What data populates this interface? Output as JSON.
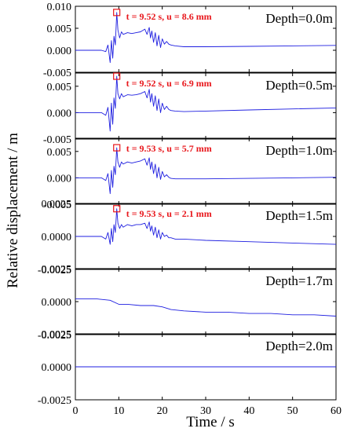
{
  "chart_data": {
    "type": "line",
    "xlabel": "Time / s",
    "ylabel": "Relative displacement / m",
    "xlim": [
      0,
      60
    ],
    "x_ticks": [
      "0",
      "10",
      "20",
      "30",
      "40",
      "50",
      "60"
    ],
    "colors": {
      "series": "#1f1fe0",
      "annotation": "#e8161b"
    },
    "panels": [
      {
        "label": "Depth=0.0m",
        "ylim": [
          -0.005,
          0.01
        ],
        "y_ticks": [
          0.01,
          0.005,
          0.0,
          -0.005
        ],
        "y_tick_labels": [
          "0.010",
          "0.005",
          "0.000",
          "-0.005"
        ],
        "annotation": {
          "text": "t = 9.52 s, u = 8.6 mm",
          "t": 9.52,
          "u": 0.0086
        },
        "series": {
          "x": [
            0,
            4,
            6,
            7,
            7.5,
            8,
            8.3,
            8.6,
            8.9,
            9.2,
            9.52,
            9.8,
            10.2,
            10.6,
            11,
            12,
            13,
            14,
            15,
            16,
            16.5,
            17,
            17.3,
            17.6,
            18,
            18.4,
            18.8,
            19.2,
            19.6,
            20,
            20.5,
            21,
            21.5,
            22,
            23,
            25,
            30,
            40,
            50,
            60
          ],
          "y": [
            0.0,
            0.0,
            0.0,
            -0.0003,
            0.0012,
            -0.0028,
            0.0022,
            -0.0018,
            0.0032,
            0.0012,
            0.0086,
            0.0046,
            0.0028,
            0.0042,
            0.0036,
            0.004,
            0.0038,
            0.004,
            0.0042,
            0.0048,
            0.0036,
            0.0052,
            0.0028,
            0.0044,
            0.0018,
            0.004,
            0.001,
            0.0034,
            0.0006,
            0.0026,
            0.0014,
            0.002,
            0.0014,
            0.0012,
            0.001,
            0.0008,
            0.0008,
            0.0009,
            0.001,
            0.0011
          ]
        }
      },
      {
        "label": "Depth=0.5m",
        "ylim": [
          -0.005,
          0.0075
        ],
        "y_ticks": [
          0.005,
          0.0,
          -0.005
        ],
        "y_tick_labels": [
          "0.005",
          "0.000",
          "-0.005"
        ],
        "annotation": {
          "text": "t = 9.52 s, u = 6.9 mm",
          "t": 9.52,
          "u": 0.0069
        },
        "series": {
          "x": [
            0,
            4,
            6,
            7,
            7.5,
            8,
            8.3,
            8.6,
            8.9,
            9.2,
            9.52,
            9.8,
            10.2,
            10.6,
            11,
            12,
            13,
            14,
            15,
            16,
            16.5,
            17,
            17.3,
            17.6,
            18,
            18.4,
            18.8,
            19.2,
            19.6,
            20,
            20.5,
            21,
            21.5,
            22,
            23,
            25,
            30,
            40,
            50,
            60
          ],
          "y": [
            0.0,
            0.0,
            0.0,
            -0.0005,
            0.001,
            -0.0035,
            0.0018,
            -0.0022,
            0.0028,
            0.0008,
            0.0069,
            0.0036,
            0.0026,
            0.0036,
            0.003,
            0.0034,
            0.0033,
            0.0034,
            0.0036,
            0.004,
            0.0028,
            0.0044,
            0.002,
            0.0036,
            0.0012,
            0.0032,
            0.0004,
            0.0026,
            0.0,
            0.0018,
            0.0006,
            0.0012,
            0.0006,
            0.0004,
            0.0003,
            0.0002,
            0.0003,
            0.0005,
            0.0007,
            0.0009
          ]
        }
      },
      {
        "label": "Depth=1.0m",
        "ylim": [
          -0.005,
          0.0075
        ],
        "y_ticks": [
          0.005,
          0.0,
          -0.005
        ],
        "y_tick_labels": [
          "0.005",
          "0.000",
          "-0.005"
        ],
        "annotation": {
          "text": "t = 9.53 s, u = 5.7 mm",
          "t": 9.53,
          "u": 0.0057
        },
        "series": {
          "x": [
            0,
            4,
            6,
            7,
            7.5,
            8,
            8.3,
            8.6,
            8.9,
            9.2,
            9.53,
            9.8,
            10.2,
            10.6,
            11,
            12,
            13,
            14,
            15,
            16,
            16.5,
            17,
            17.3,
            17.6,
            18,
            18.4,
            18.8,
            19.2,
            19.6,
            20,
            20.5,
            21,
            21.5,
            22,
            23,
            25,
            30,
            40,
            50,
            60
          ],
          "y": [
            0.0,
            0.0,
            0.0,
            -0.0005,
            0.0008,
            -0.003,
            0.0014,
            -0.0018,
            0.0022,
            0.0006,
            0.0057,
            0.003,
            0.002,
            0.003,
            0.0026,
            0.003,
            0.0028,
            0.003,
            0.0032,
            0.0036,
            0.0024,
            0.0038,
            0.0016,
            0.003,
            0.0008,
            0.0026,
            0.0,
            0.002,
            -0.0003,
            0.0012,
            0.0002,
            0.0006,
            0.0001,
            -0.0001,
            -0.0002,
            -0.0002,
            -0.0002,
            -0.0001,
            0.0,
            0.0001
          ]
        }
      },
      {
        "label": "Depth=1.5m",
        "ylim": [
          -0.0025,
          0.0025
        ],
        "y_ticks": [
          0.0025,
          0.0,
          -0.0025
        ],
        "y_tick_labels": [
          "0.0025",
          "0.0000",
          "-0.0025"
        ],
        "annotation": {
          "text": "t = 9.53 s, u = 2.1 mm",
          "t": 9.53,
          "u": 0.0021
        },
        "series": {
          "x": [
            0,
            4,
            6,
            7,
            7.5,
            8,
            8.3,
            8.6,
            8.9,
            9.2,
            9.53,
            9.8,
            10.2,
            10.6,
            11,
            12,
            13,
            14,
            15,
            16,
            16.5,
            17,
            17.3,
            17.6,
            18,
            18.4,
            18.8,
            19.2,
            19.6,
            20,
            20.5,
            21,
            21.5,
            22,
            23,
            25,
            30,
            40,
            50,
            60
          ],
          "y": [
            0.0,
            0.0,
            0.0,
            -0.0002,
            0.0003,
            -0.0006,
            0.0006,
            -0.0004,
            0.0009,
            0.0003,
            0.0021,
            0.001,
            0.0006,
            0.0009,
            0.0007,
            0.0009,
            0.0008,
            0.0009,
            0.0009,
            0.001,
            0.0006,
            0.0011,
            0.0004,
            0.0008,
            0.0001,
            0.0007,
            -0.0001,
            0.0005,
            -0.0002,
            0.0003,
            0.0,
            0.0001,
            -0.0001,
            -0.0001,
            -0.0002,
            -0.0002,
            -0.0003,
            -0.0004,
            -0.0005,
            -0.0006
          ]
        }
      },
      {
        "label": "Depth=1.7m",
        "ylim": [
          -0.0025,
          0.0025
        ],
        "y_ticks": [
          0.0025,
          0.0,
          -0.0025
        ],
        "y_tick_labels": [
          "0.0025",
          "0.0000",
          "-0.0025"
        ],
        "series": {
          "x": [
            0,
            5,
            8,
            10,
            12,
            15,
            18,
            20,
            22,
            25,
            30,
            35,
            40,
            45,
            50,
            55,
            60
          ],
          "y": [
            0.0002,
            0.0002,
            0.0001,
            -0.0002,
            -0.0002,
            -0.0003,
            -0.0003,
            -0.0004,
            -0.0006,
            -0.0007,
            -0.0008,
            -0.0008,
            -0.0009,
            -0.0009,
            -0.001,
            -0.001,
            -0.0011
          ]
        }
      },
      {
        "label": "Depth=2.0m",
        "ylim": [
          -0.0025,
          0.0025
        ],
        "y_ticks": [
          0.0025,
          0.0,
          -0.0025
        ],
        "y_tick_labels": [
          "0.0025",
          "0.0000",
          "-0.0025"
        ],
        "series": {
          "x": [
            0,
            60
          ],
          "y": [
            0.0,
            0.0
          ]
        }
      }
    ]
  }
}
